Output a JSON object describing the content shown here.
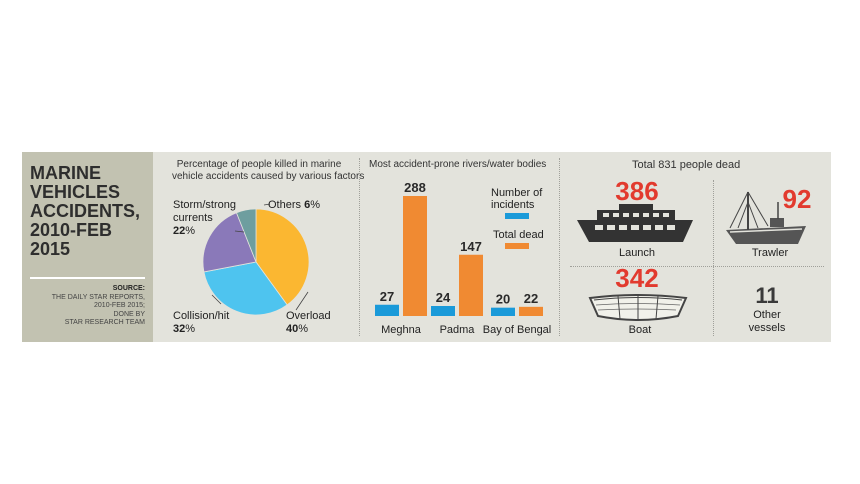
{
  "title_panel": {
    "title_lines": [
      "MARINE",
      "VEHICLES",
      "ACCIDENTS,",
      "2010-FEB",
      "2015"
    ],
    "source_label": "SOURCE:",
    "source_lines": [
      "THE DAILY STAR REPORTS,",
      "2010-FEB 2015;",
      "DONE BY",
      "STAR RESEARCH TEAM"
    ]
  },
  "colors": {
    "orange": "#f08a32",
    "blue": "#1a9ad9",
    "pie_orange": "#fbb731",
    "pie_blue": "#4ec4ef",
    "pie_purple": "#8a79b9",
    "pie_teal": "#6e9e9f",
    "number_red": "#e23a2e"
  },
  "pie_panel": {
    "heading_lines": [
      "Percentage of people killed in marine",
      "vehicle accidents caused by various factors"
    ],
    "labels": {
      "storm": {
        "name_lines": [
          "Storm/strong",
          "currents"
        ],
        "pct_num": "22",
        "pct_sign": "%"
      },
      "others": {
        "name": "Others",
        "pct_num": "6",
        "pct_sign": "%"
      },
      "collision": {
        "name": "Collision/hit",
        "pct_num": "32",
        "pct_sign": "%"
      },
      "overload": {
        "name": "Overload",
        "pct_num": "40",
        "pct_sign": "%"
      }
    }
  },
  "bar_panel": {
    "heading": "Most accident-prone rivers/water bodies",
    "legend": {
      "incidents_lines": [
        "Number of",
        "incidents"
      ],
      "dead": "Total dead"
    }
  },
  "vessel_panel": {
    "heading": "Total 831 people dead",
    "launch": {
      "value": "386",
      "label": "Launch",
      "icon": "launch-ship-icon"
    },
    "trawler": {
      "value": "92",
      "label": "Trawler",
      "icon": "trawler-icon"
    },
    "boat": {
      "value": "342",
      "label": "Boat",
      "icon": "boat-icon"
    },
    "other": {
      "value": "11",
      "label_lines": [
        "Other",
        "vessels"
      ]
    }
  },
  "chart_data": [
    {
      "type": "pie",
      "title": "Percentage of people killed in marine vehicle accidents caused by various factors",
      "categories": [
        "Overload",
        "Collision/hit",
        "Storm/strong currents",
        "Others"
      ],
      "values": [
        40,
        32,
        22,
        6
      ],
      "unit": "%"
    },
    {
      "type": "bar",
      "title": "Most accident-prone rivers/water bodies",
      "categories": [
        "Meghna",
        "Padma",
        "Bay of Bengal"
      ],
      "series": [
        {
          "name": "Number of incidents",
          "values": [
            27,
            24,
            20
          ]
        },
        {
          "name": "Total dead",
          "values": [
            288,
            147,
            22
          ]
        }
      ],
      "legend": "top-right"
    }
  ]
}
